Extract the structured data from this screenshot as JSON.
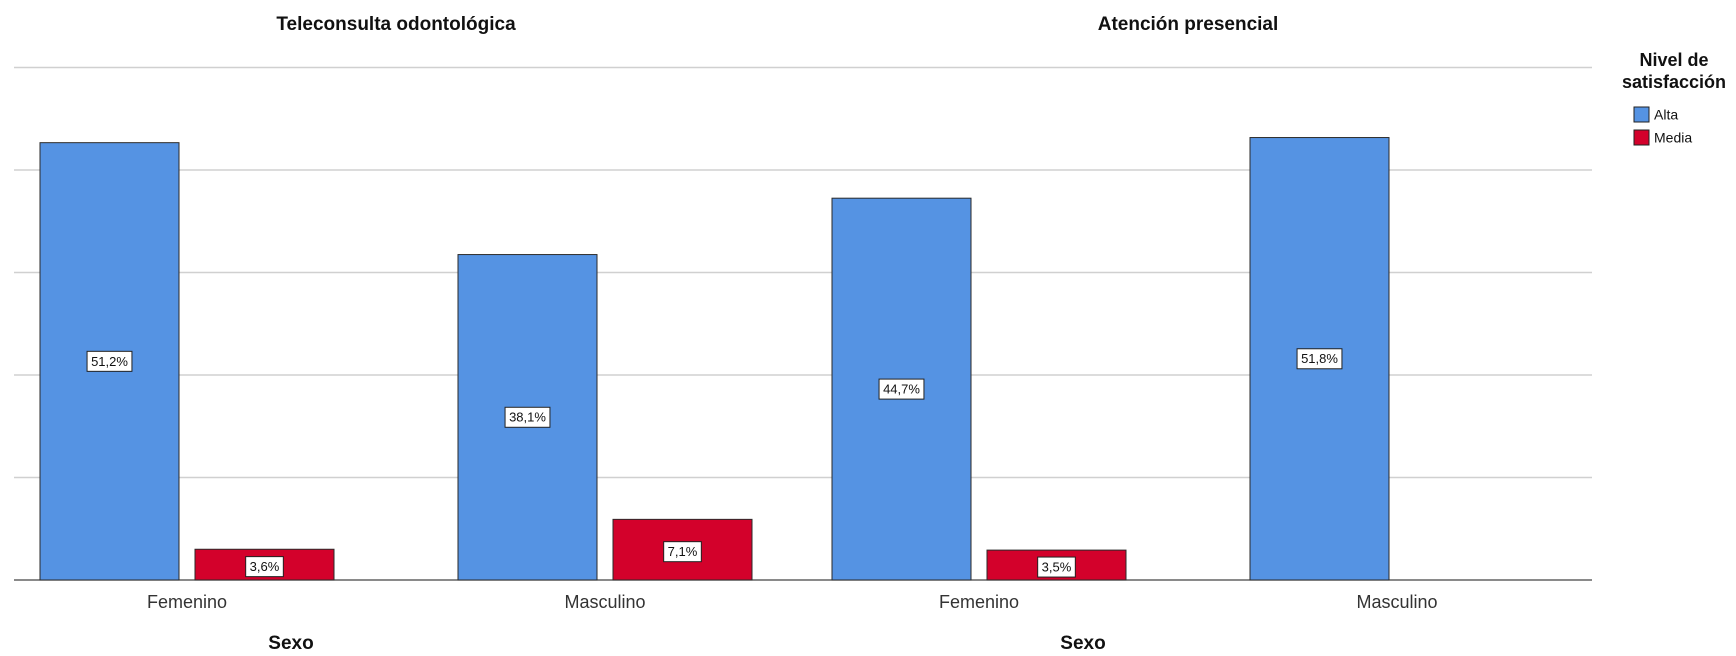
{
  "chart_data": [
    {
      "type": "bar",
      "title": "Teleconsulta odontológica",
      "x_label": "Sexo",
      "legend_title": "Nivel de satisfacción",
      "categories": [
        "Femenino",
        "Masculino"
      ],
      "series": [
        {
          "name": "Alta",
          "color": "#5593e3",
          "values": [
            51.2,
            38.1
          ],
          "value_labels": [
            "51,2%",
            "38,1%"
          ]
        },
        {
          "name": "Media",
          "color": "#d3012b",
          "values": [
            3.6,
            7.1
          ],
          "value_labels": [
            "3,6%",
            "7,1%"
          ]
        }
      ],
      "ylim": [
        0,
        60
      ],
      "yticks": [
        0,
        12,
        24,
        36,
        48,
        60
      ],
      "grid": true
    },
    {
      "type": "bar",
      "title": "Atención presencial",
      "x_label": "Sexo",
      "categories": [
        "Femenino",
        "Masculino"
      ],
      "series": [
        {
          "name": "Alta",
          "color": "#5593e3",
          "values": [
            44.7,
            51.8
          ],
          "value_labels": [
            "44,7%",
            "51,8%"
          ]
        },
        {
          "name": "Media",
          "color": "#d3012b",
          "values": [
            3.5,
            null
          ],
          "value_labels": [
            "3,5%",
            null
          ]
        }
      ],
      "ylim": [
        0,
        60
      ],
      "yticks": [
        0,
        12,
        24,
        36,
        48,
        60
      ],
      "grid": true
    }
  ]
}
